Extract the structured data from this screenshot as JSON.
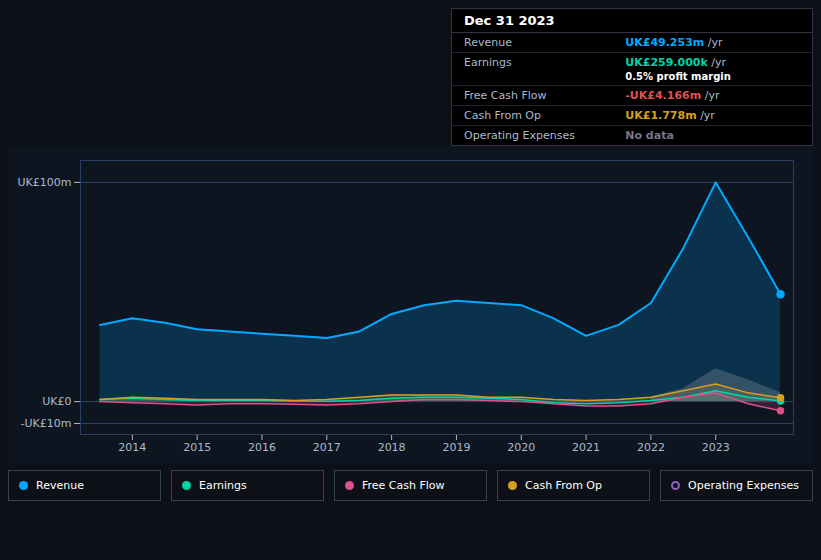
{
  "chart_data": {
    "type": "area",
    "x": [
      2013.5,
      2014,
      2014.5,
      2015,
      2015.5,
      2016,
      2016.5,
      2017,
      2017.5,
      2018,
      2018.5,
      2019,
      2019.5,
      2020,
      2020.5,
      2021,
      2021.5,
      2022,
      2022.5,
      2023,
      2023.5,
      2024
    ],
    "series": [
      {
        "name": "Revenue",
        "color": "#00aaff",
        "marker": "circle",
        "values": [
          35,
          38,
          36,
          33,
          32,
          31,
          30,
          29,
          32,
          40,
          44,
          46,
          45,
          44,
          38,
          30,
          35,
          45,
          70,
          100,
          75,
          49
        ]
      },
      {
        "name": "Earnings",
        "color": "#00d4aa",
        "marker": "circle",
        "values": [
          1,
          1.5,
          1,
          0.5,
          0.5,
          0.5,
          0.3,
          0.2,
          0.5,
          1.5,
          2,
          2,
          1.5,
          1,
          -0.5,
          -1,
          -0.5,
          0.5,
          2,
          5,
          2,
          0.26
        ]
      },
      {
        "name": "Free Cash Flow",
        "color": "#e0508a",
        "marker": "circle",
        "values": [
          0,
          -0.5,
          -1,
          -1.5,
          -1,
          -1,
          -1.2,
          -1.5,
          -1,
          0,
          1,
          1,
          0.5,
          0,
          -1,
          -2,
          -2,
          -1,
          2,
          4,
          -1,
          -4.17
        ]
      },
      {
        "name": "Cash From Op",
        "color": "#d4a020",
        "marker": "circle",
        "values": [
          1,
          2,
          1.5,
          1,
          1,
          1,
          0.5,
          1,
          2,
          3,
          3,
          3,
          2,
          2,
          1,
          0.5,
          1,
          2,
          5,
          8,
          4,
          1.78
        ]
      },
      {
        "name": "Operating Expenses",
        "color": "#9060c0",
        "marker": "circle_open",
        "values": [
          null,
          null,
          null,
          null,
          null,
          null,
          null,
          null,
          null,
          null,
          null,
          null,
          null,
          null,
          null,
          null,
          null,
          null,
          null,
          null,
          null,
          null
        ]
      },
      {
        "type": "area",
        "color": "#708090",
        "x": [
          2022,
          2022.5,
          2023,
          2023.5,
          2024
        ],
        "values": [
          2,
          6,
          15,
          10,
          4
        ]
      }
    ],
    "xlim": [
      2013.2,
      2024.2
    ],
    "xticks": [
      2014,
      2015,
      2016,
      2017,
      2018,
      2019,
      2020,
      2021,
      2022,
      2023
    ],
    "ylim": [
      -15,
      110
    ],
    "yticks": [
      {
        "value": -10,
        "label": "-UK£10m"
      },
      {
        "value": 0,
        "label": "UK£0"
      },
      {
        "value": 100,
        "label": "UK£100m"
      }
    ],
    "grid": true,
    "legend": "bottom",
    "info_box": {
      "header": "Dec 31 2023",
      "rows": [
        {
          "label": "Revenue",
          "value": "UK£49.253m",
          "unit": "/yr",
          "color": "#00aaff"
        },
        {
          "label": "Earnings",
          "value": "UK£259.000k",
          "unit": "/yr",
          "color": "#00d4aa",
          "sub": "0.5% profit margin"
        },
        {
          "label": "Free Cash Flow",
          "value": "-UK£4.166m",
          "unit": "/yr",
          "color": "#e05050"
        },
        {
          "label": "Cash From Op",
          "value": "UK£1.778m",
          "unit": "/yr",
          "color": "#d4a020"
        },
        {
          "label": "Operating Expenses",
          "value": "No data",
          "color": "#777788"
        }
      ]
    }
  }
}
